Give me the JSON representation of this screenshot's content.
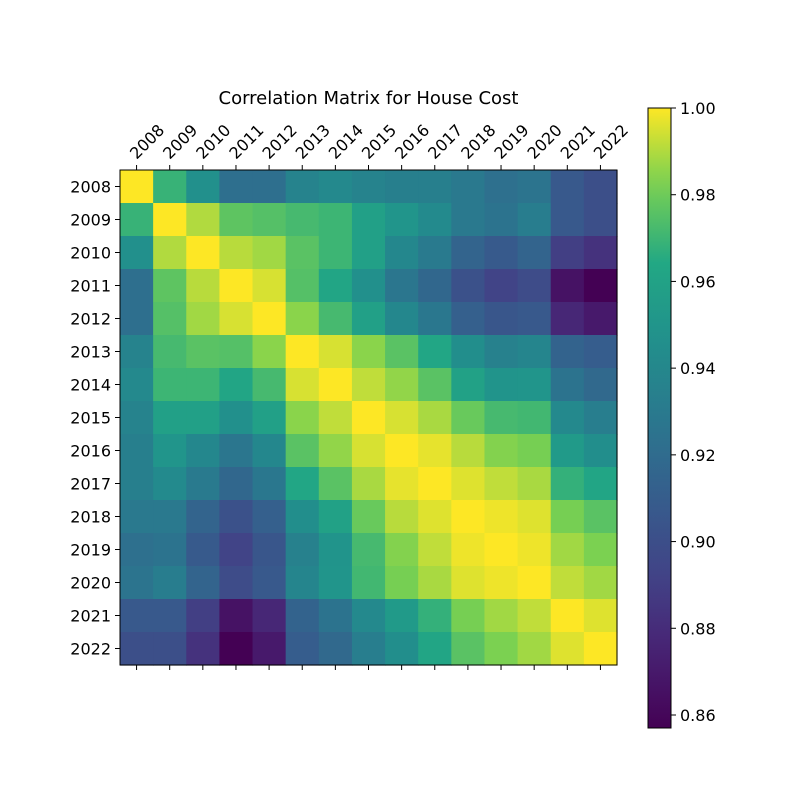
{
  "chart_data": {
    "type": "heatmap",
    "title": "Correlation Matrix for House Cost",
    "labels": [
      "2008",
      "2009",
      "2010",
      "2011",
      "2012",
      "2013",
      "2014",
      "2015",
      "2016",
      "2017",
      "2018",
      "2019",
      "2020",
      "2021",
      "2022"
    ],
    "values": [
      [
        1.0,
        0.969,
        0.946,
        0.922,
        0.922,
        0.937,
        0.941,
        0.937,
        0.934,
        0.934,
        0.929,
        0.923,
        0.926,
        0.907,
        0.9
      ],
      [
        0.969,
        1.0,
        0.99,
        0.977,
        0.975,
        0.972,
        0.97,
        0.958,
        0.95,
        0.942,
        0.929,
        0.925,
        0.932,
        0.907,
        0.9
      ],
      [
        0.946,
        0.99,
        1.0,
        0.991,
        0.988,
        0.976,
        0.97,
        0.958,
        0.94,
        0.93,
        0.915,
        0.908,
        0.915,
        0.89,
        0.883
      ],
      [
        0.922,
        0.977,
        0.991,
        1.0,
        0.995,
        0.975,
        0.962,
        0.946,
        0.927,
        0.917,
        0.902,
        0.893,
        0.898,
        0.866,
        0.857
      ],
      [
        0.922,
        0.975,
        0.988,
        0.995,
        1.0,
        0.985,
        0.972,
        0.958,
        0.94,
        0.928,
        0.912,
        0.905,
        0.907,
        0.877,
        0.87
      ],
      [
        0.937,
        0.972,
        0.976,
        0.975,
        0.985,
        1.0,
        0.995,
        0.985,
        0.976,
        0.963,
        0.945,
        0.935,
        0.938,
        0.914,
        0.91
      ],
      [
        0.941,
        0.97,
        0.97,
        0.962,
        0.972,
        0.995,
        1.0,
        0.992,
        0.986,
        0.976,
        0.959,
        0.949,
        0.95,
        0.925,
        0.918
      ],
      [
        0.937,
        0.958,
        0.958,
        0.946,
        0.958,
        0.985,
        0.992,
        1.0,
        0.995,
        0.989,
        0.979,
        0.972,
        0.971,
        0.941,
        0.933
      ],
      [
        0.934,
        0.95,
        0.94,
        0.927,
        0.94,
        0.976,
        0.986,
        0.995,
        1.0,
        0.997,
        0.991,
        0.984,
        0.982,
        0.954,
        0.945
      ],
      [
        0.934,
        0.942,
        0.93,
        0.917,
        0.928,
        0.963,
        0.976,
        0.989,
        0.997,
        1.0,
        0.996,
        0.992,
        0.989,
        0.968,
        0.962
      ],
      [
        0.929,
        0.929,
        0.915,
        0.902,
        0.912,
        0.945,
        0.959,
        0.979,
        0.991,
        0.996,
        1.0,
        0.998,
        0.996,
        0.982,
        0.976
      ],
      [
        0.923,
        0.925,
        0.908,
        0.893,
        0.905,
        0.935,
        0.949,
        0.972,
        0.984,
        0.992,
        0.998,
        1.0,
        0.998,
        0.988,
        0.983
      ],
      [
        0.926,
        0.932,
        0.915,
        0.898,
        0.907,
        0.938,
        0.95,
        0.971,
        0.982,
        0.989,
        0.996,
        0.998,
        1.0,
        0.992,
        0.988
      ],
      [
        0.907,
        0.907,
        0.89,
        0.866,
        0.877,
        0.914,
        0.925,
        0.941,
        0.954,
        0.968,
        0.982,
        0.988,
        0.992,
        1.0,
        0.996
      ],
      [
        0.9,
        0.9,
        0.883,
        0.857,
        0.87,
        0.91,
        0.918,
        0.933,
        0.945,
        0.962,
        0.976,
        0.983,
        0.988,
        0.996,
        1.0
      ]
    ],
    "colormap": "viridis",
    "vmin": 0.857,
    "vmax": 1.0,
    "colorbar_ticks": [
      "0.86",
      "0.88",
      "0.90",
      "0.92",
      "0.94",
      "0.96",
      "0.98",
      "1.00"
    ],
    "colorbar_tick_values": [
      0.86,
      0.88,
      0.9,
      0.92,
      0.94,
      0.96,
      0.98,
      1.0
    ],
    "x_tick_rotation": 45,
    "x_ticks_position": "top",
    "legend": "colorbar-right"
  }
}
